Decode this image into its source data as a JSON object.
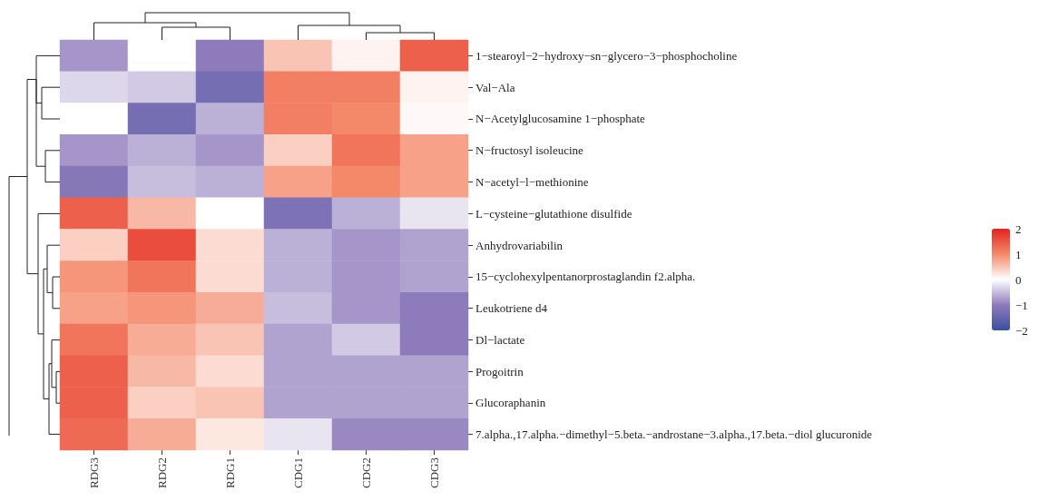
{
  "chart_data": {
    "type": "heatmap",
    "categories": [
      "RDG3",
      "RDG2",
      "RDG1",
      "CDG1",
      "CDG2",
      "CDG3"
    ],
    "y_categories": [
      "1−stearoyl−2−hydroxy−sn−glycero−3−phosphocholine",
      "Val−Ala",
      "N−Acetylglucosamine 1−phosphate",
      "N−fructosyl isoleucine",
      "N−acetyl−l−methionine",
      "L−cysteine−glutathione disulfide",
      "Anhydrovariabilin",
      "15−cyclohexylpentanorprostaglandin f2.alpha.",
      "Leukotriene d4",
      "Dl−lactate",
      "Progoitrin",
      "Glucoraphanin",
      "7.alpha.,17.alpha.−dimethyl−5.beta.−androstane−3.alpha.,17.beta.−diol glucuronide"
    ],
    "cells": [
      [
        -0.8,
        0,
        -1.0,
        0.5,
        0.1,
        1.4
      ],
      [
        -0.3,
        -0.4,
        -1.3,
        1.1,
        1.1,
        0.1
      ],
      [
        0,
        -1.3,
        -0.6,
        1.1,
        1.0,
        0.05
      ],
      [
        -0.8,
        -0.6,
        -0.8,
        0.4,
        1.2,
        0.8
      ],
      [
        -1.1,
        -0.5,
        -0.6,
        0.8,
        1.0,
        0.8
      ],
      [
        1.4,
        0.6,
        0,
        -1.2,
        -0.6,
        -0.2
      ],
      [
        0.4,
        1.6,
        0.3,
        -0.6,
        -0.8,
        -0.7
      ],
      [
        0.9,
        1.2,
        0.3,
        -0.6,
        -0.8,
        -0.7
      ],
      [
        0.8,
        0.9,
        0.7,
        -0.5,
        -0.8,
        -1.0
      ],
      [
        1.2,
        0.7,
        0.5,
        -0.7,
        -0.4,
        -1.0
      ],
      [
        1.4,
        0.6,
        0.3,
        -0.7,
        -0.7,
        -0.7
      ],
      [
        1.4,
        0.4,
        0.5,
        -0.7,
        -0.7,
        -0.7
      ],
      [
        1.3,
        0.7,
        0.2,
        -0.2,
        -0.9,
        -0.9
      ]
    ],
    "clim": [
      -2,
      2
    ],
    "cticks": [
      2,
      1,
      0,
      -1,
      -2
    ]
  }
}
